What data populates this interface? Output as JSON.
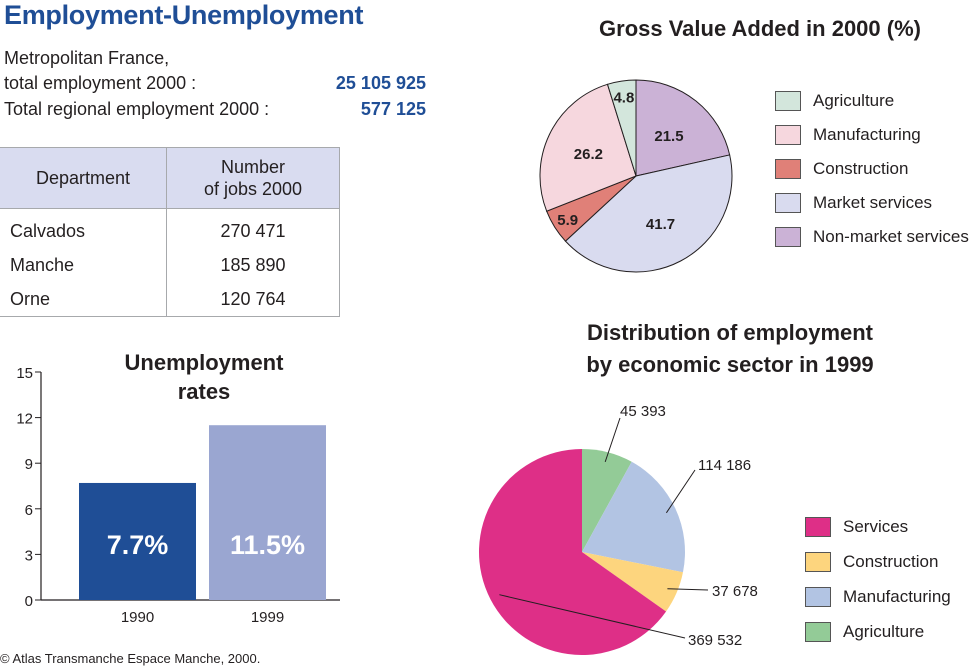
{
  "header": {
    "title": "Employment-Unemployment",
    "metro_line1": "Metropolitan France,",
    "metro_line2": "total employment 2000 :",
    "metro_value": "25 105 925",
    "regional_label": "Total regional employment 2000 :",
    "regional_value": "577 125"
  },
  "table": {
    "col1": "Department",
    "col2_line1": "Number",
    "col2_line2": "of jobs 2000",
    "rows": [
      {
        "department": "Calvados",
        "jobs": "270 471"
      },
      {
        "department": "Manche",
        "jobs": "185 890"
      },
      {
        "department": "Orne",
        "jobs": "120 764"
      }
    ]
  },
  "copyright": "© Atlas Transmanche Espace Manche, 2000.",
  "chart_data": [
    {
      "type": "bar",
      "title_line1": "Unemployment",
      "title_line2": "rates",
      "categories": [
        "1990",
        "1999"
      ],
      "values": [
        7.7,
        11.5
      ],
      "value_labels": [
        "7.7%",
        "11.5%"
      ],
      "colors": [
        "#1f4e96",
        "#9aa6d1"
      ],
      "ylim": [
        0,
        15
      ],
      "yticks": [
        0,
        3,
        6,
        9,
        12,
        15
      ],
      "grid": false
    },
    {
      "type": "pie",
      "title": "Gross Value Added in 2000 (%)",
      "labels": [
        "Agriculture",
        "Manufacturing",
        "Construction",
        "Market services",
        "Non-market services"
      ],
      "values": [
        4.8,
        26.2,
        5.9,
        41.7,
        21.5
      ],
      "colors": [
        "#d3e6dc",
        "#f6d7de",
        "#e08078",
        "#d9dbef",
        "#cbb2d6"
      ],
      "legend_position": "right"
    },
    {
      "type": "pie",
      "title_line1": "Distribution of employment",
      "title_line2": "by economic sector in 1999",
      "labels": [
        "Services",
        "Construction",
        "Manufacturing",
        "Agriculture"
      ],
      "values": [
        369532,
        37678,
        114186,
        45393
      ],
      "value_labels": [
        "369 532",
        "37 678",
        "114 186",
        "45 393"
      ],
      "colors": [
        "#de2f87",
        "#fdd57e",
        "#b2c4e3",
        "#93cb97"
      ],
      "legend_position": "right"
    }
  ]
}
